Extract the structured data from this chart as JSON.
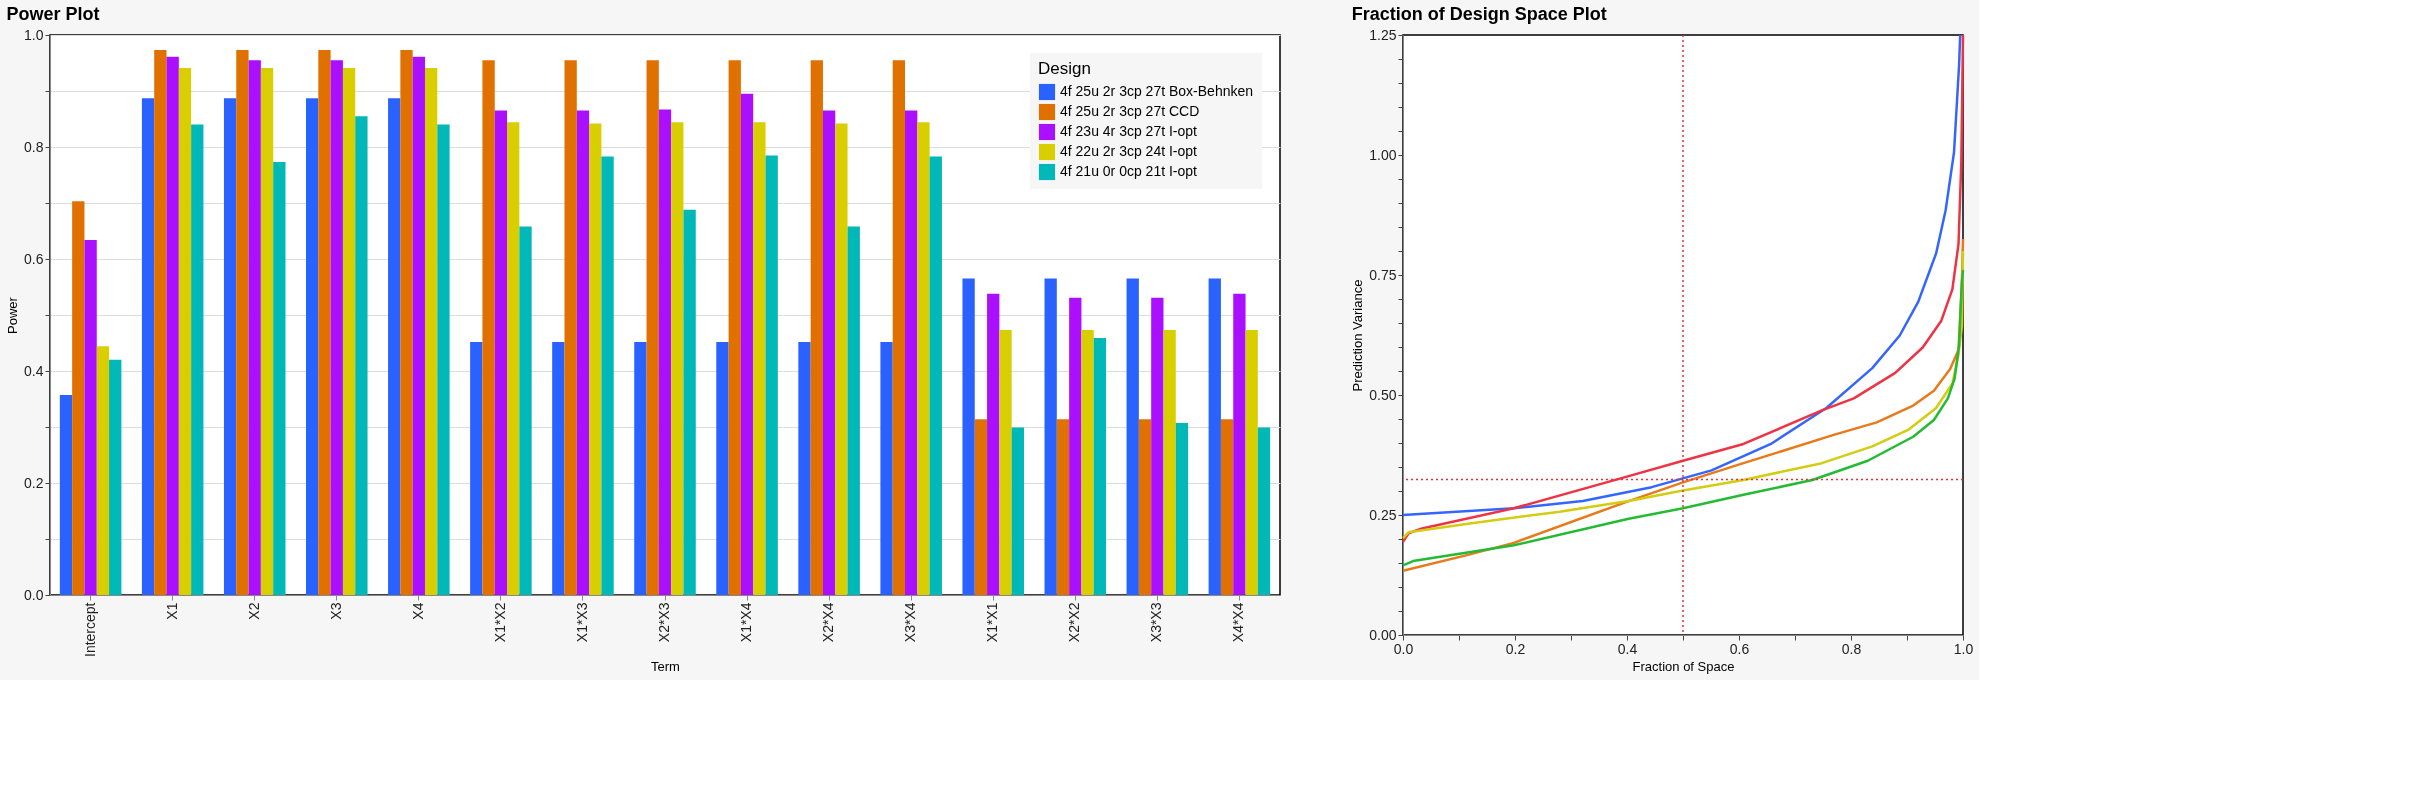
{
  "chart_data": [
    {
      "type": "bar",
      "title": "Power Plot",
      "xlabel": "Term",
      "ylabel": "Power",
      "legend_title": "Design",
      "legend": "top right",
      "grid": "y",
      "categories": [
        "Intercept",
        "X1",
        "X2",
        "X3",
        "X4",
        "X1*X2",
        "X1*X3",
        "X2*X3",
        "X1*X4",
        "X2*X4",
        "X3*X4",
        "X1*X1",
        "X2*X2",
        "X3*X3",
        "X4*X4"
      ],
      "ylim": [
        0,
        1
      ],
      "yticks": [
        {
          "value": 0,
          "label": "0.0"
        },
        {
          "value": 0.1,
          "label": null
        },
        0.2,
        {
          "value": 0.3,
          "label": null
        },
        0.4,
        {
          "value": 0.5,
          "label": null
        },
        0.6,
        {
          "value": 0.7,
          "label": null
        },
        0.8,
        {
          "value": 0.9,
          "label": null
        },
        {
          "value": 1,
          "label": "1.0"
        }
      ],
      "series": [
        {
          "name": "4f 25u 2r 3cp 27t Box-Behnken",
          "color": "#2a62ff",
          "values": [
            0.357,
            0.887,
            0.887,
            0.887,
            0.887,
            0.452,
            0.452,
            0.452,
            0.452,
            0.452,
            0.452,
            0.565,
            0.565,
            0.565,
            0.565
          ]
        },
        {
          "name": "4f 25u 2r 3cp 27t CCD",
          "color": "#e07000",
          "values": [
            0.703,
            0.973,
            0.973,
            0.973,
            0.973,
            0.955,
            0.955,
            0.955,
            0.955,
            0.955,
            0.955,
            0.314,
            0.314,
            0.314,
            0.314
          ]
        },
        {
          "name": "4f 23u 4r 3cp 27t I-opt",
          "color": "#aa10ff",
          "values": [
            0.634,
            0.961,
            0.955,
            0.955,
            0.961,
            0.865,
            0.865,
            0.867,
            0.895,
            0.865,
            0.865,
            0.538,
            0.531,
            0.531,
            0.538
          ]
        },
        {
          "name": "4f 22u 2r 3cp 24t I-opt",
          "color": "#d9cf00",
          "values": [
            0.444,
            0.941,
            0.941,
            0.941,
            0.941,
            0.844,
            0.842,
            0.844,
            0.844,
            0.842,
            0.844,
            0.473,
            0.473,
            0.473,
            0.473
          ]
        },
        {
          "name": "4f 21u 0r 0cp 21t I-opt",
          "color": "#00b8b8",
          "values": [
            0.42,
            0.84,
            0.773,
            0.855,
            0.84,
            0.658,
            0.783,
            0.688,
            0.785,
            0.658,
            0.783,
            0.299,
            0.459,
            0.307,
            0.299
          ]
        }
      ]
    },
    {
      "type": "line",
      "title": "Fraction of Design Space Plot",
      "xlabel": "Fraction of Space",
      "ylabel": "Prediction Variance",
      "legend": false,
      "grid": false,
      "marker": "none",
      "line_style": "solid",
      "xlim": [
        0,
        1
      ],
      "xticks": [
        {
          "value": 0,
          "label": "0.0"
        },
        {
          "value": 0.1,
          "label": null
        },
        0.2,
        {
          "value": 0.3,
          "label": null
        },
        0.4,
        {
          "value": 0.5,
          "label": null
        },
        0.6,
        {
          "value": 0.7,
          "label": null
        },
        0.8,
        {
          "value": 0.9,
          "label": null
        },
        {
          "value": 1,
          "label": "1.0"
        }
      ],
      "ylim": [
        0,
        1.25
      ],
      "yticks": [
        {
          "value": 0,
          "label": "0.00"
        },
        {
          "value": 0.05,
          "label": null
        },
        {
          "value": 0.1,
          "label": null
        },
        {
          "value": 0.15,
          "label": null
        },
        {
          "value": 0.2,
          "label": null
        },
        0.25,
        {
          "value": 0.3,
          "label": null
        },
        {
          "value": 0.35,
          "label": null
        },
        {
          "value": 0.4,
          "label": null
        },
        {
          "value": 0.45,
          "label": null
        },
        {
          "value": 0.5,
          "label": "0.50"
        },
        {
          "value": 0.55,
          "label": null
        },
        {
          "value": 0.6,
          "label": null
        },
        {
          "value": 0.65,
          "label": null
        },
        {
          "value": 0.7,
          "label": null
        },
        0.75,
        {
          "value": 0.8,
          "label": null
        },
        {
          "value": 0.85,
          "label": null
        },
        {
          "value": 0.9,
          "label": null
        },
        {
          "value": 0.95,
          "label": null
        },
        {
          "value": 1,
          "label": "1.00"
        },
        {
          "value": 1.05,
          "label": null
        },
        {
          "value": 1.1,
          "label": null
        },
        {
          "value": 1.15,
          "label": null
        },
        {
          "value": 1.2,
          "label": null
        },
        1.25
      ],
      "ref_lines": [
        {
          "axis": "x",
          "value": 0.5,
          "color": "#e8303a",
          "line_style": "dotted"
        },
        {
          "axis": "y",
          "value": 0.324,
          "color": "#e8303a",
          "line_style": "dotted"
        }
      ],
      "series": [
        {
          "color": "#3366ff",
          "x": [
            0,
            0.198,
            0.321,
            0.444,
            0.551,
            0.657,
            0.756,
            0.838,
            0.887,
            0.92,
            0.952,
            0.969,
            0.984,
            0.993,
            0.995
          ],
          "values": [
            0.25,
            0.264,
            0.279,
            0.308,
            0.343,
            0.398,
            0.473,
            0.556,
            0.624,
            0.694,
            0.795,
            0.885,
            1.006,
            1.187,
            1.25
          ]
        },
        {
          "color": "#ee3344",
          "x": [
            0,
            0.01,
            0.034,
            0.198,
            0.403,
            0.5,
            0.608,
            0.748,
            0.805,
            0.879,
            0.928,
            0.961,
            0.981,
            0.992,
            0.997,
            1.0
          ],
          "values": [
            0.194,
            0.212,
            0.222,
            0.264,
            0.331,
            0.363,
            0.398,
            0.468,
            0.493,
            0.546,
            0.599,
            0.654,
            0.72,
            0.815,
            0.986,
            1.25
          ]
        },
        {
          "color": "#e87a1c",
          "x": [
            0,
            0.116,
            0.198,
            0.403,
            0.5,
            0.608,
            0.772,
            0.846,
            0.911,
            0.948,
            0.977,
            0.992,
            0.998,
            1.0
          ],
          "values": [
            0.134,
            0.167,
            0.192,
            0.279,
            0.318,
            0.358,
            0.418,
            0.443,
            0.478,
            0.509,
            0.554,
            0.594,
            0.735,
            0.825
          ]
        },
        {
          "color": "#d4cc10",
          "x": [
            0,
            0.01,
            0.116,
            0.28,
            0.403,
            0.5,
            0.608,
            0.748,
            0.838,
            0.903,
            0.952,
            0.981,
            0.992,
            0.998,
            1.0
          ],
          "values": [
            0.202,
            0.214,
            0.232,
            0.257,
            0.279,
            0.301,
            0.323,
            0.358,
            0.393,
            0.428,
            0.473,
            0.524,
            0.584,
            0.644,
            0.8
          ]
        },
        {
          "color": "#22bb33",
          "x": [
            0,
            0.018,
            0.198,
            0.403,
            0.5,
            0.608,
            0.731,
            0.83,
            0.911,
            0.948,
            0.973,
            0.985,
            0.993,
            0.998,
            1.0
          ],
          "values": [
            0.145,
            0.154,
            0.187,
            0.242,
            0.264,
            0.292,
            0.323,
            0.363,
            0.413,
            0.448,
            0.493,
            0.534,
            0.604,
            0.735,
            0.76
          ]
        }
      ]
    }
  ]
}
